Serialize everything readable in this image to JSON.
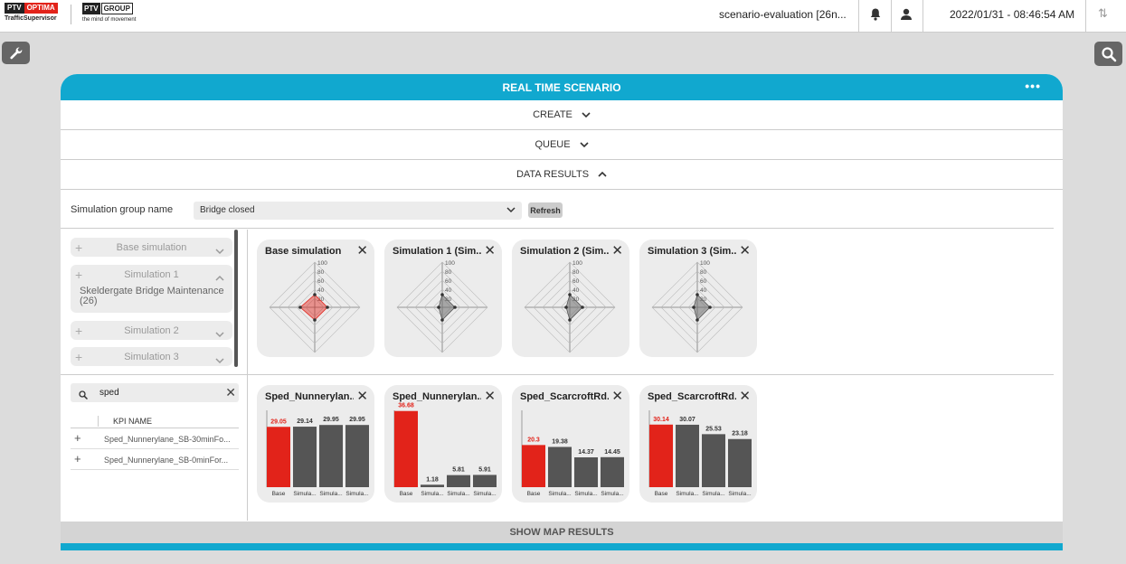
{
  "header": {
    "logo_ptv": "PTV",
    "logo_optima": "OPTIMA",
    "logo_sub": "TrafficSupervisor",
    "logo_group_a": "PTV",
    "logo_group_b": "GROUP",
    "logo_group_sub": "the mind of movement",
    "scenario": "scenario-evaluation [26n...",
    "datetime": "2022/01/31 - 08:46:54  AM"
  },
  "panel": {
    "title": "REAL TIME SCENARIO",
    "menu": "•••",
    "sections": [
      {
        "label": "CREATE",
        "state": "collapsed"
      },
      {
        "label": "QUEUE",
        "state": "collapsed"
      },
      {
        "label": "DATA RESULTS",
        "state": "expanded"
      }
    ],
    "sim_group_label": "Simulation group name",
    "sim_group_value": "Bridge closed",
    "refresh_label": "Refresh",
    "simulations": [
      {
        "name": "Base simulation",
        "expanded": false
      },
      {
        "name": "Simulation 1",
        "expanded": true,
        "content": "Skeldergate Bridge Maintenance (26)"
      },
      {
        "name": "Simulation 2",
        "expanded": false
      },
      {
        "name": "Simulation 3",
        "expanded": false
      }
    ],
    "kpi_search_value": "sped",
    "kpi_header": "KPI NAME",
    "kpis": [
      "Sped_Nunnerylane_SB-30minFo...",
      "Sped_Nunnerylane_SB-0minFor..."
    ],
    "show_map": "SHOW MAP RESULTS"
  },
  "radar_cards": [
    {
      "title": "Base simulation",
      "ticks": [
        "100",
        "80",
        "60",
        "40",
        "20"
      ],
      "highlight": true
    },
    {
      "title": "Simulation 1 (Sim...",
      "ticks": [
        "100",
        "80",
        "60",
        "40",
        "20"
      ],
      "highlight": false
    },
    {
      "title": "Simulation 2 (Sim...",
      "ticks": [
        "100",
        "80",
        "60",
        "40",
        "20"
      ],
      "highlight": false
    },
    {
      "title": "Simulation 3 (Sim...",
      "ticks": [
        "100",
        "80",
        "60",
        "40",
        "20"
      ],
      "highlight": false
    }
  ],
  "chart_data": [
    {
      "type": "bar",
      "title": "Sped_Nunnerylan...",
      "categories": [
        "Base",
        "Simula...",
        "Simula...",
        "Simula..."
      ],
      "values": [
        29.05,
        29.14,
        29.95,
        29.95
      ]
    },
    {
      "type": "bar",
      "title": "Sped_Nunnerylan...",
      "categories": [
        "Base",
        "Simula...",
        "Simula...",
        "Simula..."
      ],
      "values": [
        36.68,
        1.18,
        5.81,
        5.91
      ]
    },
    {
      "type": "bar",
      "title": "Sped_ScarcroftRd...",
      "categories": [
        "Base",
        "Simula...",
        "Simula...",
        "Simula..."
      ],
      "values": [
        20.3,
        19.38,
        14.37,
        14.45
      ]
    },
    {
      "type": "bar",
      "title": "Sped_ScarcroftRd...",
      "categories": [
        "Base",
        "Simula...",
        "Simula...",
        "Simula..."
      ],
      "values": [
        30.14,
        30.07,
        25.53,
        23.18
      ]
    }
  ],
  "colors": {
    "accent": "#11a8cf",
    "base_bar": "#e2231a",
    "sim_bar": "#555555",
    "card_bg": "#ececec"
  },
  "icons": {
    "tool": "wrench-icon",
    "search": "search-icon",
    "bell": "bell-icon",
    "user": "user-icon",
    "sort": "sort-icon"
  }
}
